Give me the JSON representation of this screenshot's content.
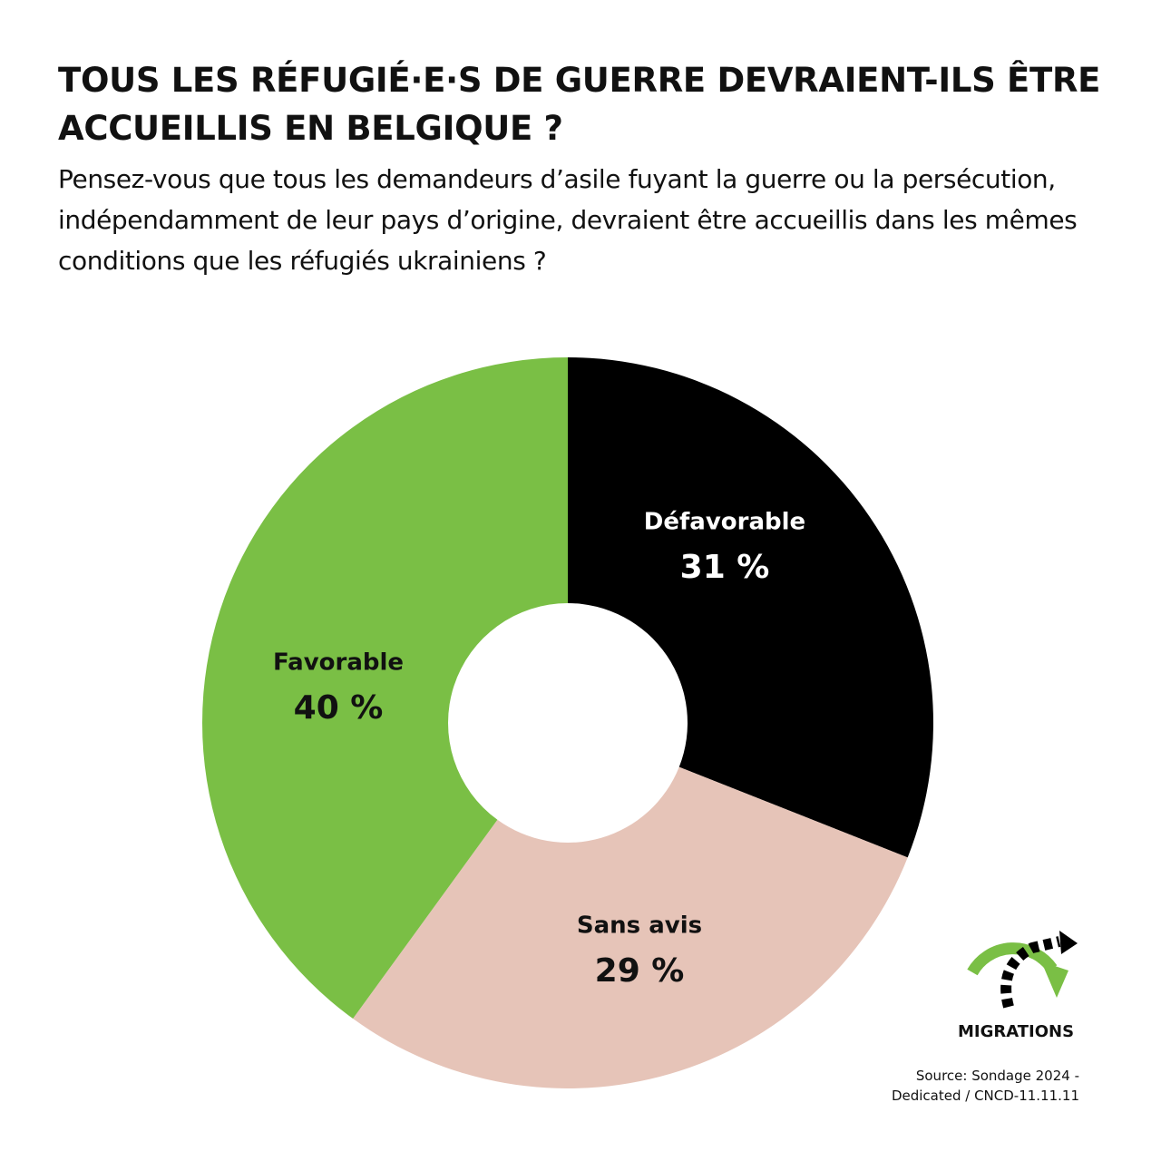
{
  "title": "TOUS LES RÉFUGIÉ·E·S DE GUERRE DEVRAIENT-ILS ÊTRE ACCUEILLIS EN BELGIQUE ?",
  "subtitle": "Pensez-vous que tous les demandeurs d’asile fuyant la guerre ou la persécution, indépendamment de leur pays d’origine, devraient être accueillis dans les mêmes conditions que les réfugiés ukrainiens ?",
  "chart_data": {
    "type": "pie",
    "donut": true,
    "start": "top, clockwise",
    "slices": [
      {
        "label": "Défavorable",
        "value": 31,
        "value_label": "31 %",
        "color": "#000000",
        "text_color": "#ffffff"
      },
      {
        "label": "Sans avis",
        "value": 29,
        "value_label": "29 %",
        "color": "#e6c4b8",
        "text_color": "#111111"
      },
      {
        "label": "Favorable",
        "value": 40,
        "value_label": "40 %",
        "color": "#7abf45",
        "text_color": "#111111"
      }
    ]
  },
  "logo": {
    "text": "MIGRATIONS",
    "icon": "migrations-arrows-icon",
    "colors": [
      "#7abf45",
      "#000000"
    ]
  },
  "source": {
    "line1": "Source: Sondage 2024 -",
    "line2": "Dedicated /  CNCD-11.11.11"
  }
}
